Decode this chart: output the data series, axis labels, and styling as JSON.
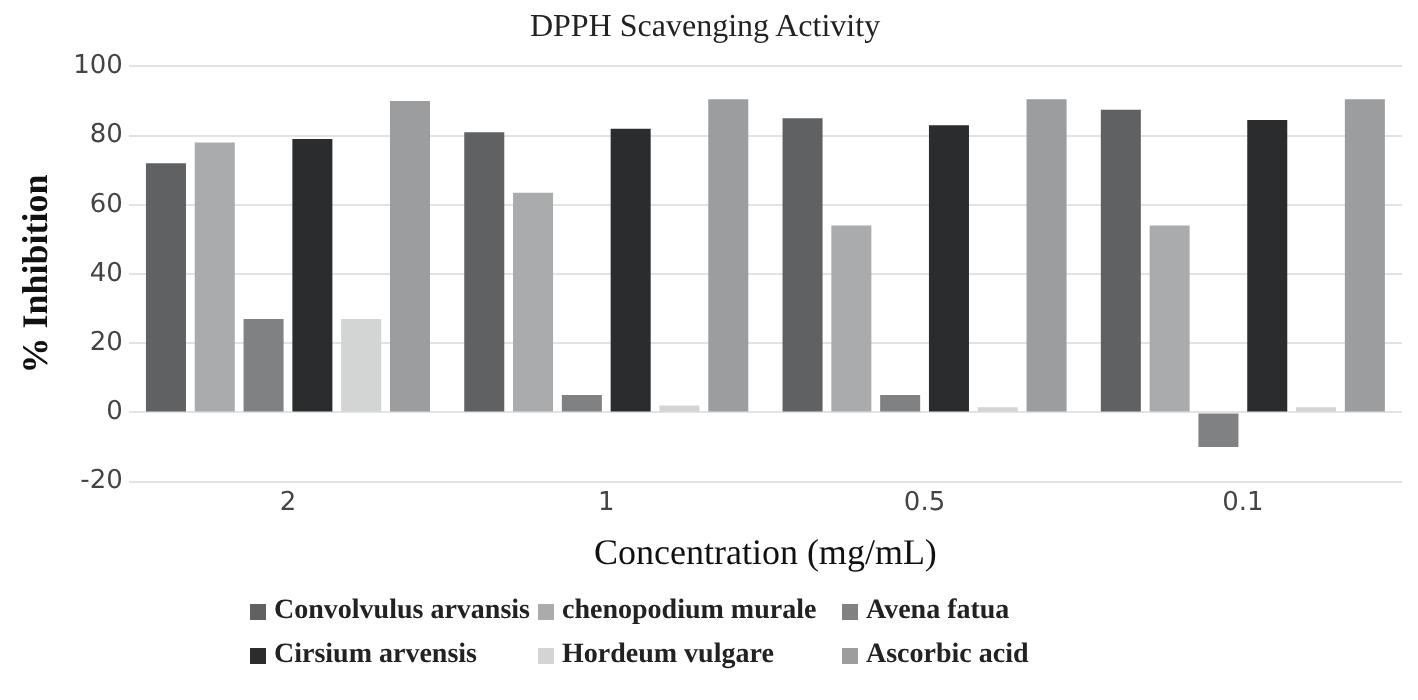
{
  "chart_data": {
    "type": "bar",
    "title": "DPPH Scavenging Activity",
    "xlabel": "Concentration (mg/mL)",
    "ylabel": "% Inhibition",
    "categories": [
      "2",
      "1",
      "0.5",
      "0.1"
    ],
    "series": [
      {
        "name": "Convolvulus arvansis",
        "color": "#5f6163",
        "values": [
          72,
          81,
          85,
          87.5
        ]
      },
      {
        "name": "chenopodium murale",
        "color": "#a9abad",
        "values": [
          78,
          63.5,
          54,
          54
        ]
      },
      {
        "name": "Avena fatua",
        "color": "#7f8183",
        "values": [
          27,
          5,
          5,
          -10
        ]
      },
      {
        "name": "Cirsium arvensis",
        "color": "#2a2c2d",
        "values": [
          79,
          82,
          83,
          84.5
        ]
      },
      {
        "name": "Hordeum vulgare",
        "color": "#d3d4d4",
        "values": [
          27,
          2,
          1.5,
          1.5
        ]
      },
      {
        "name": "Ascorbic acid",
        "color": "#9b9d9f",
        "values": [
          90,
          90.5,
          90.5,
          90.5
        ]
      }
    ],
    "ylim": [
      -20,
      100
    ],
    "yticks": [
      -20,
      0,
      20,
      40,
      60,
      80,
      100
    ],
    "grid": "y",
    "legend": "bottom"
  }
}
